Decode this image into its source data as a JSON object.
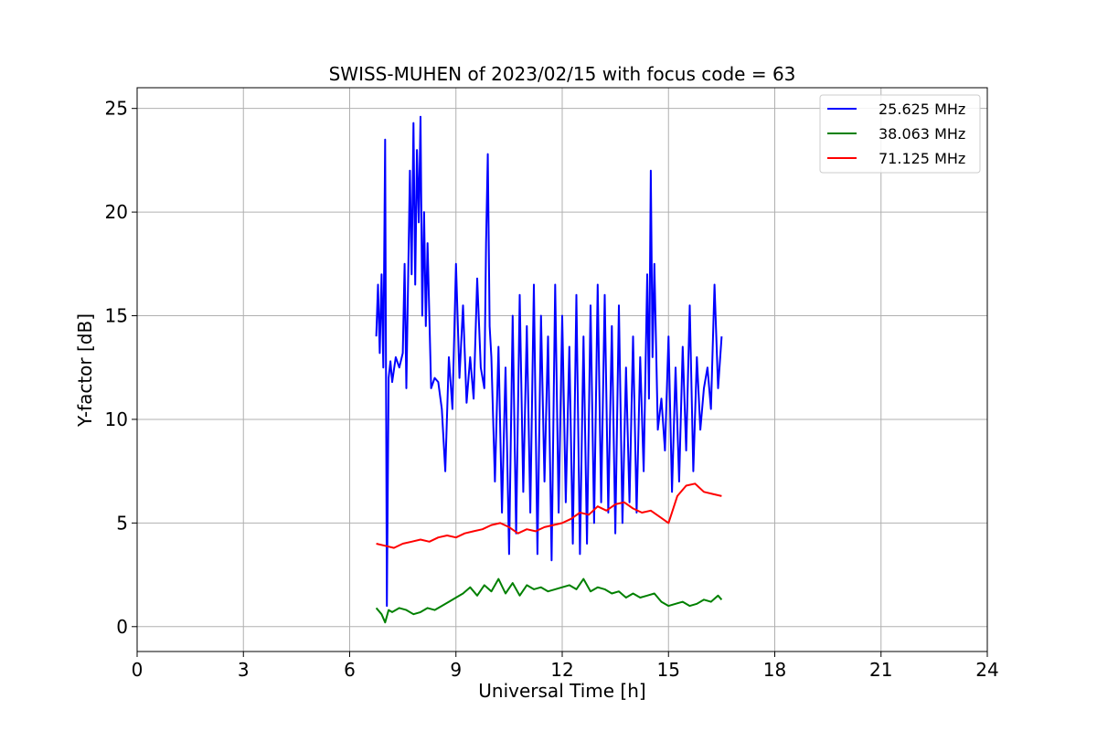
{
  "chart_data": {
    "type": "line",
    "title": "SWISS-MUHEN of 2023/02/15 with focus code = 63",
    "xlabel": "Universal Time [h]",
    "ylabel": "Y-factor [dB]",
    "xlim": [
      0,
      24
    ],
    "ylim": [
      -1.2,
      26
    ],
    "xticks": [
      0,
      3,
      6,
      9,
      12,
      15,
      18,
      21,
      24
    ],
    "yticks": [
      0,
      5,
      10,
      15,
      20,
      25
    ],
    "grid": true,
    "legend_position": "top-right",
    "series": [
      {
        "name": "25.625 MHz",
        "color": "#0000ff",
        "x": [
          6.75,
          6.8,
          6.85,
          6.9,
          6.95,
          7.0,
          7.05,
          7.1,
          7.15,
          7.2,
          7.3,
          7.4,
          7.5,
          7.55,
          7.6,
          7.7,
          7.75,
          7.8,
          7.85,
          7.9,
          7.95,
          8.0,
          8.05,
          8.1,
          8.15,
          8.2,
          8.3,
          8.4,
          8.5,
          8.6,
          8.7,
          8.8,
          8.9,
          9.0,
          9.1,
          9.2,
          9.3,
          9.4,
          9.5,
          9.6,
          9.7,
          9.8,
          9.85,
          9.9,
          9.95,
          10.0,
          10.1,
          10.2,
          10.3,
          10.4,
          10.5,
          10.6,
          10.7,
          10.8,
          10.9,
          11.0,
          11.1,
          11.2,
          11.3,
          11.4,
          11.5,
          11.6,
          11.7,
          11.8,
          11.9,
          12.0,
          12.1,
          12.2,
          12.3,
          12.4,
          12.5,
          12.6,
          12.7,
          12.8,
          12.9,
          13.0,
          13.1,
          13.2,
          13.3,
          13.4,
          13.5,
          13.6,
          13.7,
          13.8,
          13.9,
          14.0,
          14.1,
          14.2,
          14.3,
          14.4,
          14.45,
          14.5,
          14.55,
          14.6,
          14.7,
          14.8,
          14.9,
          15.0,
          15.1,
          15.2,
          15.3,
          15.4,
          15.5,
          15.6,
          15.7,
          15.8,
          15.9,
          16.0,
          16.1,
          16.2,
          16.3,
          16.4,
          16.5
        ],
        "y": [
          14.0,
          16.5,
          13.2,
          17.0,
          12.5,
          23.5,
          1.0,
          12.0,
          12.8,
          11.8,
          13.0,
          12.5,
          13.2,
          17.5,
          11.5,
          22.0,
          17.0,
          24.3,
          16.5,
          23.0,
          19.5,
          24.6,
          15.0,
          20.0,
          14.5,
          18.5,
          11.5,
          12.0,
          11.8,
          10.5,
          7.5,
          13.0,
          10.5,
          17.5,
          12.0,
          15.5,
          10.8,
          13.0,
          11.0,
          16.8,
          12.5,
          11.5,
          18.5,
          22.8,
          14.5,
          13.0,
          7.0,
          13.5,
          5.5,
          12.5,
          3.5,
          15.0,
          4.5,
          16.0,
          6.5,
          14.5,
          5.5,
          16.5,
          3.5,
          15.0,
          7.0,
          14.0,
          3.2,
          16.5,
          5.5,
          15.0,
          6.0,
          13.5,
          4.0,
          16.0,
          3.5,
          14.0,
          4.0,
          15.5,
          5.0,
          16.5,
          6.0,
          16.0,
          5.5,
          14.5,
          4.5,
          15.5,
          5.0,
          12.5,
          6.0,
          14.0,
          5.5,
          13.0,
          7.5,
          17.0,
          11.0,
          22.0,
          13.0,
          17.5,
          9.5,
          11.0,
          8.5,
          14.0,
          6.5,
          12.5,
          7.0,
          13.5,
          8.5,
          15.5,
          7.5,
          13.0,
          9.5,
          11.5,
          12.5,
          10.5,
          16.5,
          11.5,
          14.0
        ]
      },
      {
        "name": "38.063 MHz",
        "color": "#008000",
        "x": [
          6.75,
          6.9,
          7.0,
          7.1,
          7.2,
          7.4,
          7.6,
          7.8,
          8.0,
          8.2,
          8.4,
          8.6,
          8.8,
          9.0,
          9.2,
          9.4,
          9.6,
          9.8,
          10.0,
          10.2,
          10.4,
          10.6,
          10.8,
          11.0,
          11.2,
          11.4,
          11.6,
          11.8,
          12.0,
          12.2,
          12.4,
          12.6,
          12.8,
          13.0,
          13.2,
          13.4,
          13.6,
          13.8,
          14.0,
          14.2,
          14.4,
          14.6,
          14.8,
          15.0,
          15.2,
          15.4,
          15.6,
          15.8,
          16.0,
          16.2,
          16.4,
          16.5
        ],
        "y": [
          0.9,
          0.6,
          0.2,
          0.8,
          0.7,
          0.9,
          0.8,
          0.6,
          0.7,
          0.9,
          0.8,
          1.0,
          1.2,
          1.4,
          1.6,
          1.9,
          1.5,
          2.0,
          1.7,
          2.3,
          1.6,
          2.1,
          1.5,
          2.0,
          1.8,
          1.9,
          1.7,
          1.8,
          1.9,
          2.0,
          1.8,
          2.3,
          1.7,
          1.9,
          1.8,
          1.6,
          1.7,
          1.4,
          1.6,
          1.4,
          1.5,
          1.6,
          1.2,
          1.0,
          1.1,
          1.2,
          1.0,
          1.1,
          1.3,
          1.2,
          1.5,
          1.3
        ]
      },
      {
        "name": "71.125 MHz",
        "color": "#ff0000",
        "x": [
          6.75,
          7.0,
          7.25,
          7.5,
          7.75,
          8.0,
          8.25,
          8.5,
          8.75,
          9.0,
          9.25,
          9.5,
          9.75,
          10.0,
          10.25,
          10.5,
          10.75,
          11.0,
          11.25,
          11.5,
          11.75,
          12.0,
          12.25,
          12.5,
          12.75,
          13.0,
          13.25,
          13.5,
          13.75,
          14.0,
          14.25,
          14.5,
          14.75,
          15.0,
          15.25,
          15.5,
          15.75,
          16.0,
          16.25,
          16.5
        ],
        "y": [
          4.0,
          3.9,
          3.8,
          4.0,
          4.1,
          4.2,
          4.1,
          4.3,
          4.4,
          4.3,
          4.5,
          4.6,
          4.7,
          4.9,
          5.0,
          4.8,
          4.5,
          4.7,
          4.6,
          4.8,
          4.9,
          5.0,
          5.2,
          5.5,
          5.4,
          5.8,
          5.6,
          5.9,
          6.0,
          5.7,
          5.5,
          5.6,
          5.3,
          5.0,
          6.3,
          6.8,
          6.9,
          6.5,
          6.4,
          6.3
        ]
      }
    ]
  }
}
